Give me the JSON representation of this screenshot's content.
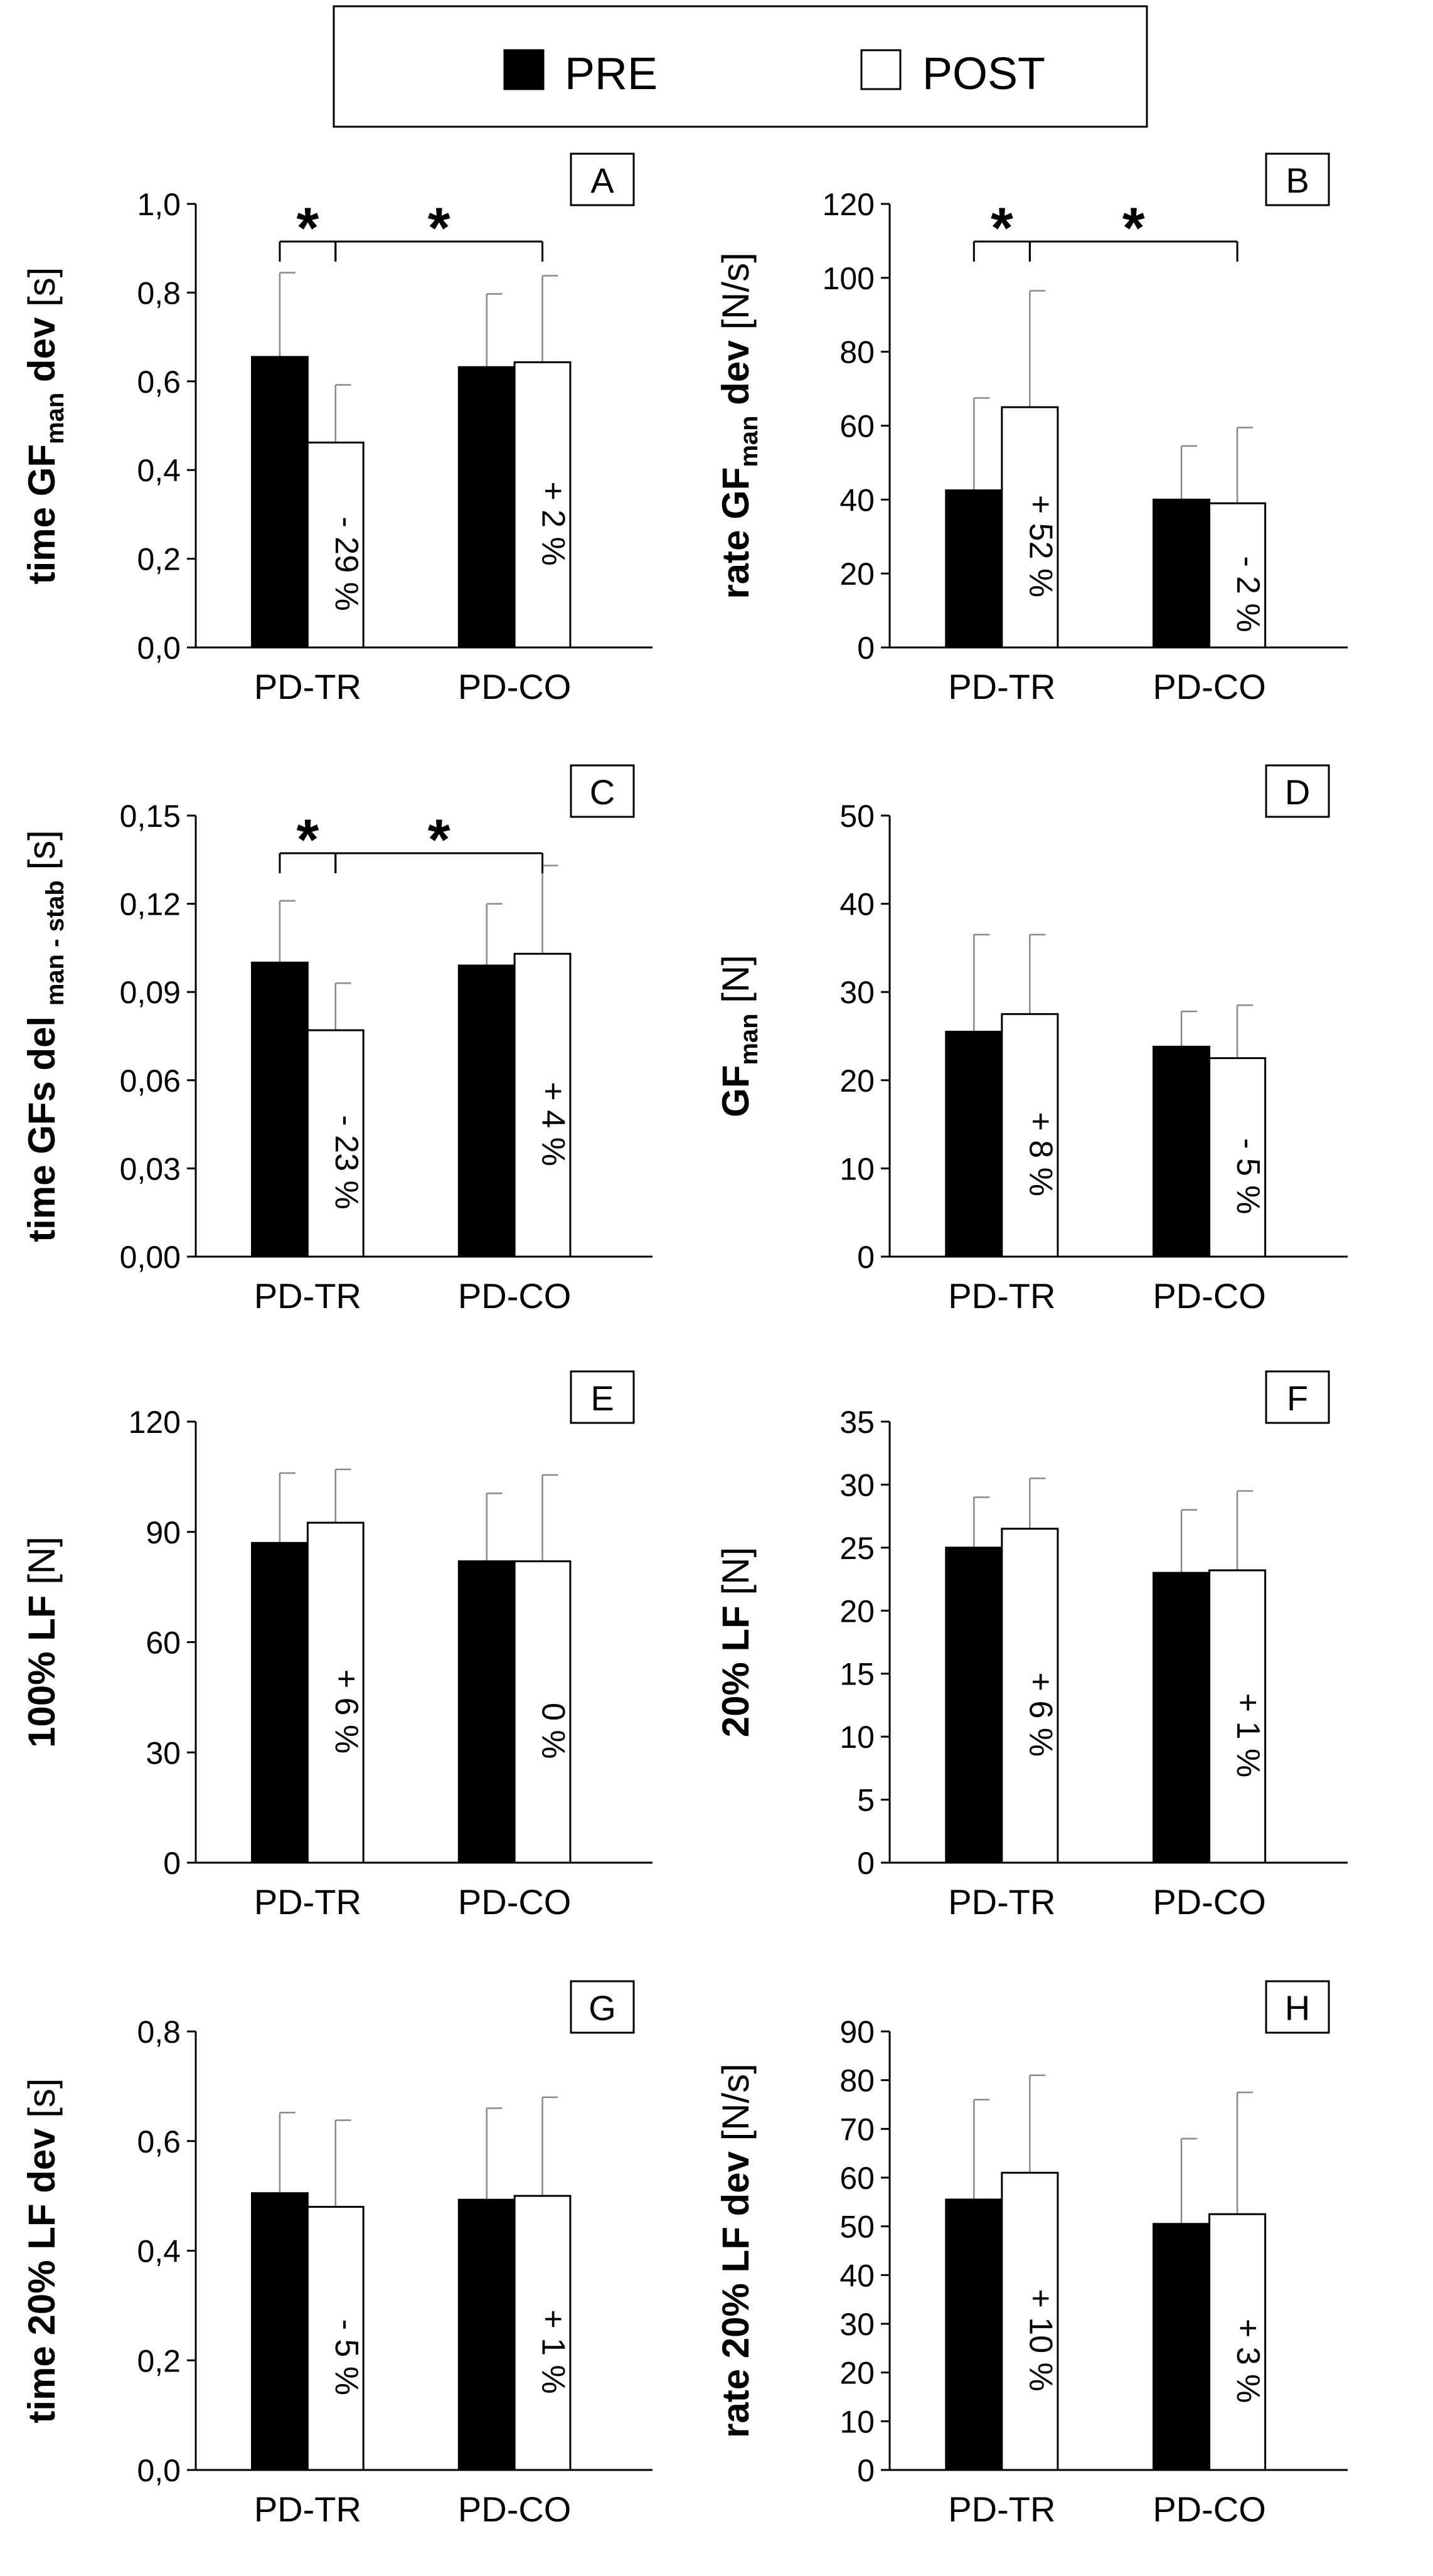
{
  "legend": {
    "items": [
      {
        "label": "PRE",
        "color": "#000000"
      },
      {
        "label": "POST",
        "color": "#ffffff"
      }
    ]
  },
  "chart_data": [
    {
      "id": "A",
      "type": "bar",
      "panel_label": "A",
      "ylabel_parts": [
        {
          "t": "time GF"
        },
        {
          "t": "man",
          "sub": true
        },
        {
          "t": " dev"
        }
      ],
      "yunit": "[s]",
      "categories": [
        "PD-TR",
        "PD-CO"
      ],
      "series": [
        {
          "name": "PRE",
          "values": [
            0.655,
            0.632
          ],
          "errors": [
            0.19,
            0.165
          ]
        },
        {
          "name": "POST",
          "values": [
            0.462,
            0.643
          ],
          "errors": [
            0.13,
            0.195
          ]
        }
      ],
      "annotations": [
        "- 29 %",
        "+ 2 %"
      ],
      "significance": [
        {
          "from": "PD-TR PRE",
          "to": "PD-TR POST",
          "label": "*"
        },
        {
          "from": "PD-TR POST",
          "to": "PD-CO POST",
          "label": "*"
        }
      ],
      "ylim": [
        0,
        1.0
      ],
      "yticks": [
        0,
        0.2,
        0.4,
        0.6,
        0.8,
        1.0
      ],
      "ytick_labels": [
        "0,0",
        "0,2",
        "0,4",
        "0,6",
        "0,8",
        "1,0"
      ]
    },
    {
      "id": "B",
      "type": "bar",
      "panel_label": "B",
      "ylabel_parts": [
        {
          "t": "rate GF"
        },
        {
          "t": "man",
          "sub": true
        },
        {
          "t": " dev"
        }
      ],
      "yunit": "[N/s]",
      "categories": [
        "PD-TR",
        "PD-CO"
      ],
      "series": [
        {
          "name": "PRE",
          "values": [
            42.5,
            40.0
          ],
          "errors": [
            25,
            14.5
          ]
        },
        {
          "name": "POST",
          "values": [
            65.0,
            39.0
          ],
          "errors": [
            31.5,
            20.5
          ]
        }
      ],
      "annotations": [
        "+ 52 %",
        "- 2 %"
      ],
      "significance": [
        {
          "from": "PD-TR PRE",
          "to": "PD-TR POST",
          "label": "*"
        },
        {
          "from": "PD-TR POST",
          "to": "PD-CO POST",
          "label": "*"
        }
      ],
      "ylim": [
        0,
        120
      ],
      "yticks": [
        0,
        20,
        40,
        60,
        80,
        100,
        120
      ],
      "ytick_labels": [
        "0",
        "20",
        "40",
        "60",
        "80",
        "100",
        "120"
      ]
    },
    {
      "id": "C",
      "type": "bar",
      "panel_label": "C",
      "ylabel_parts": [
        {
          "t": "time GFs del "
        },
        {
          "t": "man - stab",
          "sub": true
        }
      ],
      "yunit": "[s]",
      "categories": [
        "PD-TR",
        "PD-CO"
      ],
      "series": [
        {
          "name": "PRE",
          "values": [
            0.1,
            0.099
          ],
          "errors": [
            0.021,
            0.021
          ]
        },
        {
          "name": "POST",
          "values": [
            0.077,
            0.103
          ],
          "errors": [
            0.016,
            0.03
          ]
        }
      ],
      "annotations": [
        "- 23 %",
        "+ 4 %"
      ],
      "significance": [
        {
          "from": "PD-TR PRE",
          "to": "PD-TR POST",
          "label": "*"
        },
        {
          "from": "PD-TR POST",
          "to": "PD-CO POST",
          "label": "*"
        }
      ],
      "ylim": [
        0,
        0.15
      ],
      "yticks": [
        0,
        0.03,
        0.06,
        0.09,
        0.12,
        0.15
      ],
      "ytick_labels": [
        "0,00",
        "0,03",
        "0,06",
        "0,09",
        "0,12",
        "0,15"
      ]
    },
    {
      "id": "D",
      "type": "bar",
      "panel_label": "D",
      "ylabel_parts": [
        {
          "t": "GF"
        },
        {
          "t": "man",
          "sub": true
        }
      ],
      "yunit": "[N]",
      "categories": [
        "PD-TR",
        "PD-CO"
      ],
      "series": [
        {
          "name": "PRE",
          "values": [
            25.5,
            23.8
          ],
          "errors": [
            11,
            4
          ]
        },
        {
          "name": "POST",
          "values": [
            27.5,
            22.5
          ],
          "errors": [
            9,
            6
          ]
        }
      ],
      "annotations": [
        "+ 8 %",
        "- 5 %"
      ],
      "significance": [],
      "ylim": [
        0,
        50
      ],
      "yticks": [
        0,
        10,
        20,
        30,
        40,
        50
      ],
      "ytick_labels": [
        "0",
        "10",
        "20",
        "30",
        "40",
        "50"
      ]
    },
    {
      "id": "E",
      "type": "bar",
      "panel_label": "E",
      "ylabel_parts": [
        {
          "t": "100% LF"
        }
      ],
      "yunit": "[N]",
      "categories": [
        "PD-TR",
        "PD-CO"
      ],
      "series": [
        {
          "name": "PRE",
          "values": [
            87,
            82
          ],
          "errors": [
            19,
            18.5
          ]
        },
        {
          "name": "POST",
          "values": [
            92.5,
            82
          ],
          "errors": [
            14.5,
            23.5
          ]
        }
      ],
      "annotations": [
        "+ 6 %",
        "0 %"
      ],
      "significance": [],
      "ylim": [
        0,
        120
      ],
      "yticks": [
        0,
        30,
        60,
        90,
        120
      ],
      "ytick_labels": [
        "0",
        "30",
        "60",
        "90",
        "120"
      ]
    },
    {
      "id": "F",
      "type": "bar",
      "panel_label": "F",
      "ylabel_parts": [
        {
          "t": "20% LF"
        }
      ],
      "yunit": "[N]",
      "categories": [
        "PD-TR",
        "PD-CO"
      ],
      "series": [
        {
          "name": "PRE",
          "values": [
            25,
            23
          ],
          "errors": [
            4,
            5
          ]
        },
        {
          "name": "POST",
          "values": [
            26.5,
            23.2
          ],
          "errors": [
            4,
            6.3
          ]
        }
      ],
      "annotations": [
        "+ 6 %",
        "+ 1 %"
      ],
      "significance": [],
      "ylim": [
        0,
        35
      ],
      "yticks": [
        0,
        5,
        10,
        15,
        20,
        25,
        30,
        35
      ],
      "ytick_labels": [
        "0",
        "5",
        "10",
        "15",
        "20",
        "25",
        "30",
        "35"
      ]
    },
    {
      "id": "G",
      "type": "bar",
      "panel_label": "G",
      "ylabel_parts": [
        {
          "t": "time 20% LF dev"
        }
      ],
      "yunit": "[s]",
      "categories": [
        "PD-TR",
        "PD-CO"
      ],
      "series": [
        {
          "name": "PRE",
          "values": [
            0.505,
            0.493
          ],
          "errors": [
            0.147,
            0.167
          ]
        },
        {
          "name": "POST",
          "values": [
            0.48,
            0.5
          ],
          "errors": [
            0.158,
            0.18
          ]
        }
      ],
      "annotations": [
        "- 5 %",
        "+ 1 %"
      ],
      "significance": [],
      "ylim": [
        0,
        0.8
      ],
      "yticks": [
        0,
        0.2,
        0.4,
        0.6,
        0.8
      ],
      "ytick_labels": [
        "0,0",
        "0,2",
        "0,4",
        "0,6",
        "0,8"
      ]
    },
    {
      "id": "H",
      "type": "bar",
      "panel_label": "H",
      "ylabel_parts": [
        {
          "t": "rate 20% LF dev"
        }
      ],
      "yunit": "[N/s]",
      "categories": [
        "PD-TR",
        "PD-CO"
      ],
      "series": [
        {
          "name": "PRE",
          "values": [
            55.5,
            50.5
          ],
          "errors": [
            20.5,
            17.5
          ]
        },
        {
          "name": "POST",
          "values": [
            61,
            52.5
          ],
          "errors": [
            20,
            25
          ]
        }
      ],
      "annotations": [
        "+ 10 %",
        "+ 3 %"
      ],
      "significance": [],
      "ylim": [
        0,
        90
      ],
      "yticks": [
        0,
        10,
        20,
        30,
        40,
        50,
        60,
        70,
        80,
        90
      ],
      "ytick_labels": [
        "0",
        "10",
        "20",
        "30",
        "40",
        "50",
        "60",
        "70",
        "80",
        "90"
      ]
    }
  ]
}
